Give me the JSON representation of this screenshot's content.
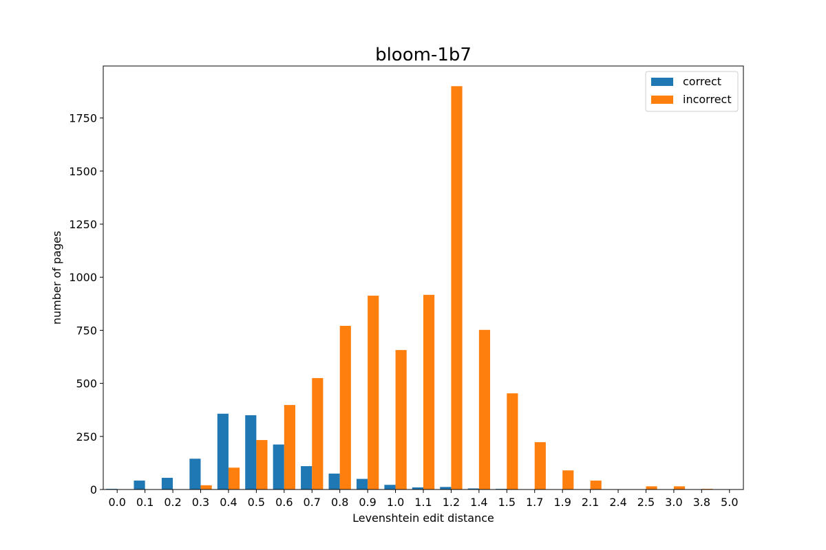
{
  "chart_data": {
    "type": "bar",
    "title": "bloom-1b7",
    "xlabel": "Levenshtein edit distance",
    "ylabel": "number of pages",
    "categories": [
      "0.0",
      "0.1",
      "0.2",
      "0.3",
      "0.4",
      "0.5",
      "0.6",
      "0.7",
      "0.8",
      "0.9",
      "1.0",
      "1.1",
      "1.2",
      "1.4",
      "1.5",
      "1.7",
      "1.9",
      "2.1",
      "2.4",
      "2.5",
      "3.0",
      "3.8",
      "5.0"
    ],
    "series": [
      {
        "name": "correct",
        "color": "#1f77b4",
        "values": [
          3,
          42,
          55,
          145,
          357,
          350,
          212,
          110,
          75,
          50,
          22,
          10,
          12,
          5,
          3,
          0,
          0,
          0,
          0,
          0,
          0,
          0,
          0
        ]
      },
      {
        "name": "incorrect",
        "color": "#ff7f0e",
        "values": [
          0,
          0,
          0,
          20,
          103,
          233,
          398,
          525,
          771,
          913,
          657,
          917,
          1900,
          752,
          453,
          223,
          90,
          42,
          0,
          15,
          15,
          3,
          0
        ]
      }
    ],
    "ylim": [
      0,
      1995
    ],
    "yticks": [
      0,
      250,
      500,
      750,
      1000,
      1250,
      1500,
      1750
    ],
    "legend_position": "top-right",
    "grid": false
  }
}
